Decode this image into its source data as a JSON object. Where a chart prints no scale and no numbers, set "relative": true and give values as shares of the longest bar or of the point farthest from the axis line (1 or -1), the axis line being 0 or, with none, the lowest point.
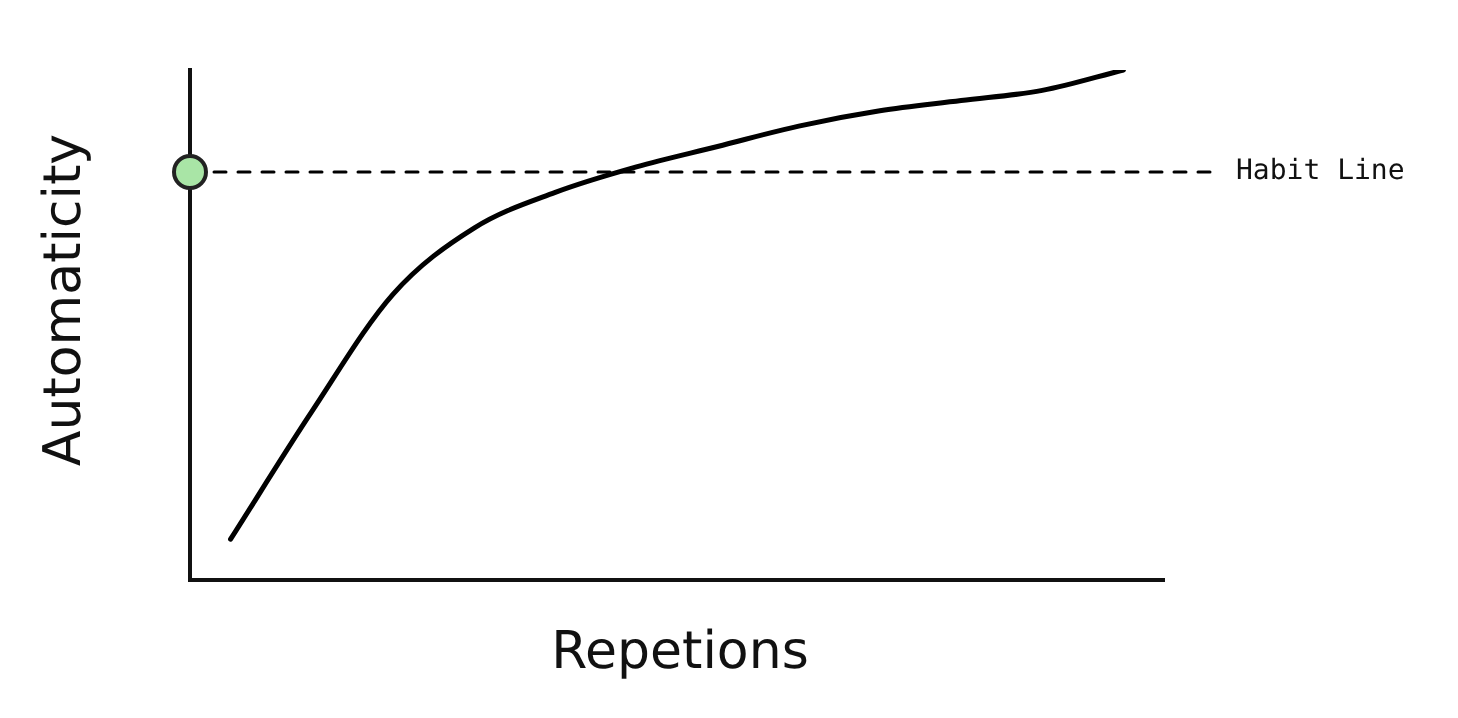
{
  "chart_data": {
    "type": "line",
    "relative": true,
    "xlabel": "Repetions",
    "ylabel": "Automaticity",
    "categories": [
      null,
      null,
      null,
      null,
      null,
      null,
      null,
      null,
      null,
      null,
      null,
      null
    ],
    "series": [
      {
        "color": "#000000",
        "values": [
          0.08,
          0.33,
          0.56,
          0.69,
          0.76,
          0.81,
          0.85,
          0.89,
          0.92,
          0.94,
          0.96,
          1.0
        ]
      }
    ],
    "ref_lines": [
      {
        "axis": "y",
        "value": 0.8,
        "label": "Habit Line",
        "line_style": "dashed",
        "color": "#000000"
      }
    ],
    "marker": "none",
    "line_style": "solid",
    "legend": false
  }
}
